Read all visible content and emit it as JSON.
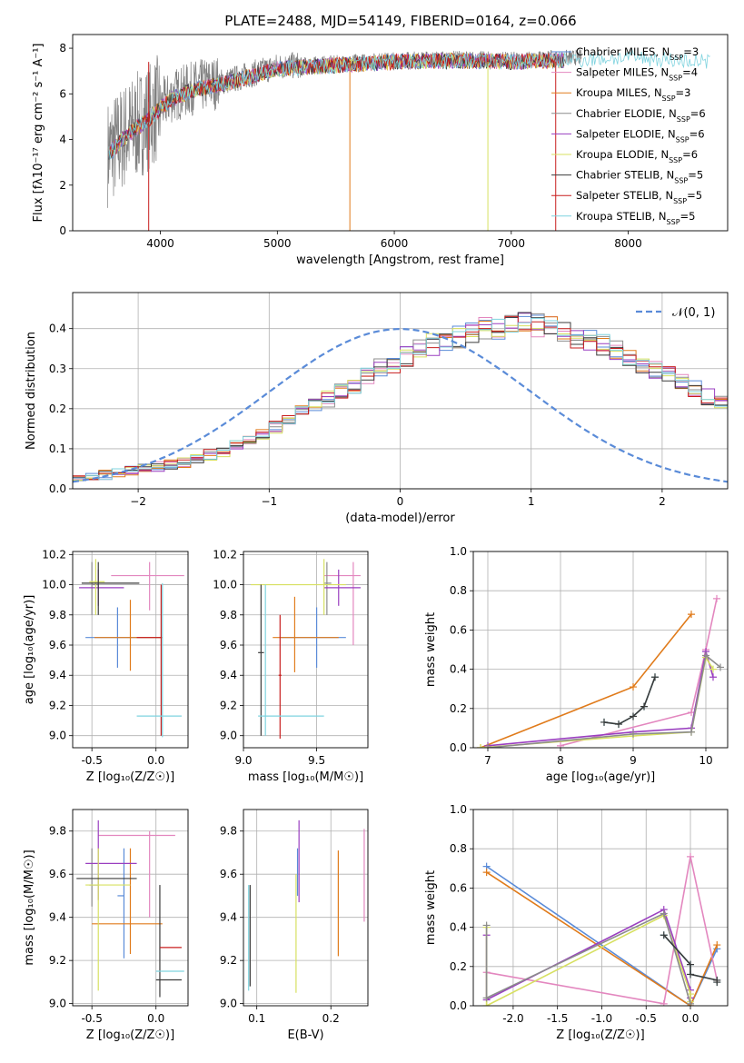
{
  "figure_title": "PLATE=2488, MJD=54149, FIBERID=0164, z=0.066",
  "model_colors": [
    "#5a8bd8",
    "#e387bf",
    "#e07b1b",
    "#8c8c8c",
    "#9a3fc0",
    "#d7e061",
    "#3b3b3b",
    "#c81e1e",
    "#7fd3df"
  ],
  "chart_data": [
    {
      "type": "line",
      "id": "spectrum",
      "xlabel": "wavelength [Angstrom, rest frame]",
      "ylabel": "Flux [fλ10⁻¹⁷ erg cm⁻² s⁻¹ A⁻¹]",
      "xlim": [
        3250,
        8850
      ],
      "ylim": [
        0,
        8.6
      ],
      "xticks": [
        4000,
        5000,
        6000,
        7000,
        8000
      ],
      "yticks": [
        0,
        2,
        4,
        6,
        8
      ],
      "data_series": {
        "name": "data",
        "color": "#808080",
        "x_range": [
          3550,
          7600
        ],
        "continuum": [
          [
            3550,
            3.4
          ],
          [
            3700,
            4.2
          ],
          [
            3900,
            5.0
          ],
          [
            4100,
            5.9
          ],
          [
            4300,
            6.3
          ],
          [
            4600,
            6.6
          ],
          [
            5000,
            7.2
          ],
          [
            5500,
            7.35
          ],
          [
            6000,
            7.5
          ],
          [
            6500,
            7.55
          ],
          [
            7000,
            7.5
          ],
          [
            7600,
            7.6
          ]
        ]
      },
      "legend": [
        "Chabrier MILES, N_SSP=3",
        "Salpeter MILES, N_SSP=4",
        "Kroupa MILES, N_SSP=3",
        "Chabrier ELODIE, N_SSP=6",
        "Salpeter ELODIE, N_SSP=6",
        "Kroupa ELODIE, N_SSP=6",
        "Chabrier STELIB, N_SSP=5",
        "Salpeter STELIB, N_SSP=5",
        "Kroupa STELIB, N_SSP=5"
      ]
    },
    {
      "type": "histogram",
      "id": "residuals",
      "xlabel": "(data-model)/error",
      "ylabel": "Normed distribution",
      "xlim": [
        -2.5,
        2.5
      ],
      "ylim": [
        0,
        0.49
      ],
      "xticks": [
        -2,
        -1,
        0,
        1,
        2
      ],
      "yticks": [
        0.0,
        0.1,
        0.2,
        0.3,
        0.4
      ],
      "bin_width": 0.1,
      "legend": "𝒩(0, 1)",
      "legend_color": "#5a8bd8",
      "bins_base": [
        0.025,
        0.03,
        0.035,
        0.04,
        0.045,
        0.05,
        0.055,
        0.06,
        0.065,
        0.075,
        0.085,
        0.095,
        0.11,
        0.125,
        0.14,
        0.155,
        0.17,
        0.19,
        0.21,
        0.225,
        0.245,
        0.26,
        0.28,
        0.3,
        0.315,
        0.33,
        0.345,
        0.36,
        0.37,
        0.38,
        0.39,
        0.4,
        0.4,
        0.41,
        0.42,
        0.41,
        0.4,
        0.39,
        0.38,
        0.37,
        0.36,
        0.345,
        0.33,
        0.315,
        0.3,
        0.285,
        0.27,
        0.25,
        0.23,
        0.215,
        0.2,
        0.18,
        0.165,
        0.15,
        0.135,
        0.12,
        0.105,
        0.09,
        0.075,
        0.065,
        0.055,
        0.045,
        0.04,
        0.035,
        0.03,
        0.03,
        0.025,
        0.025,
        0.02,
        0.02
      ],
      "bins_start": -2.5
    },
    {
      "type": "errorbar",
      "id": "age-vs-Z",
      "xlabel": "Z [log₁₀(Z/Z☉)]",
      "ylabel": "age  [log₁₀(age/yr)]",
      "xlim": [
        -0.65,
        0.25
      ],
      "ylim": [
        8.92,
        10.22
      ],
      "xticks": [
        -0.5,
        0.0
      ],
      "yticks": [
        9.0,
        9.2,
        9.4,
        9.6,
        9.8,
        10.0,
        10.2
      ],
      "points": [
        {
          "c": 0,
          "x": -0.3,
          "y": 9.65,
          "xe": [
            -0.55,
            0.05
          ],
          "ye": [
            9.45,
            9.85
          ]
        },
        {
          "c": 1,
          "x": -0.05,
          "y": 10.06,
          "xe": [
            -0.35,
            0.22
          ],
          "ye": [
            9.83,
            10.15
          ]
        },
        {
          "c": 2,
          "x": -0.2,
          "y": 9.65,
          "xe": [
            -0.48,
            0.05
          ],
          "ye": [
            9.43,
            9.9
          ]
        },
        {
          "c": 3,
          "x": -0.5,
          "y": 10.0,
          "xe": [
            -0.5,
            -0.45
          ],
          "ye": [
            9.8,
            10.15
          ]
        },
        {
          "c": 4,
          "x": -0.45,
          "y": 9.98,
          "xe": [
            -0.6,
            -0.25
          ],
          "ye": [
            9.86,
            10.1
          ]
        },
        {
          "c": 5,
          "x": -0.47,
          "y": 10.02,
          "xe": [
            -0.52,
            -0.4
          ],
          "ye": [
            9.8,
            10.17
          ]
        },
        {
          "c": 6,
          "x": -0.45,
          "y": 10.01,
          "xe": [
            -0.58,
            -0.13
          ],
          "ye": [
            9.8,
            10.15
          ]
        },
        {
          "c": 7,
          "x": 0.04,
          "y": 9.65,
          "xe": [
            -0.15,
            0.05
          ],
          "ye": [
            9.0,
            10.0
          ]
        },
        {
          "c": 8,
          "x": 0.05,
          "y": 9.13,
          "xe": [
            -0.15,
            0.2
          ],
          "ye": [
            8.99,
            10.01
          ]
        }
      ]
    },
    {
      "type": "errorbar",
      "id": "age-vs-mass",
      "xlabel": "mass [log₁₀(M/M☉)]",
      "ylabel": "",
      "xlim": [
        9.0,
        9.85
      ],
      "ylim": [
        8.92,
        10.22
      ],
      "xticks": [
        9.0,
        9.5
      ],
      "yticks": [
        9.0,
        9.2,
        9.4,
        9.6,
        9.8,
        10.0,
        10.2
      ],
      "points": [
        {
          "c": 0,
          "x": 9.5,
          "y": 9.65,
          "xe": [
            9.25,
            9.7
          ],
          "ye": [
            9.45,
            9.85
          ]
        },
        {
          "c": 1,
          "x": 9.75,
          "y": 10.06,
          "xe": [
            9.55,
            9.8
          ],
          "ye": [
            9.6,
            10.15
          ]
        },
        {
          "c": 2,
          "x": 9.35,
          "y": 9.65,
          "xe": [
            9.2,
            9.65
          ],
          "ye": [
            9.42,
            9.92
          ]
        },
        {
          "c": 3,
          "x": 9.57,
          "y": 10.01,
          "xe": [
            9.55,
            9.6
          ],
          "ye": [
            9.8,
            10.15
          ]
        },
        {
          "c": 4,
          "x": 9.65,
          "y": 9.98,
          "xe": [
            9.55,
            9.8
          ],
          "ye": [
            9.86,
            10.1
          ]
        },
        {
          "c": 5,
          "x": 9.55,
          "y": 10.0,
          "xe": [
            9.05,
            9.7
          ],
          "ye": [
            9.8,
            10.17
          ]
        },
        {
          "c": 6,
          "x": 9.12,
          "y": 9.55,
          "xe": [
            9.1,
            9.14
          ],
          "ye": [
            9.0,
            10.0
          ]
        },
        {
          "c": 7,
          "x": 9.25,
          "y": 9.4,
          "xe": [
            9.24,
            9.26
          ],
          "ye": [
            8.98,
            9.8
          ]
        },
        {
          "c": 8,
          "x": 9.15,
          "y": 9.13,
          "xe": [
            9.1,
            9.55
          ],
          "ye": [
            9.0,
            10.0
          ]
        }
      ]
    },
    {
      "type": "line",
      "id": "weight-vs-age",
      "xlabel": "age  [log₁₀(age/yr)]",
      "ylabel": "mass weight",
      "xlim": [
        6.8,
        10.3
      ],
      "ylim": [
        0,
        1.0
      ],
      "xticks": [
        7,
        8,
        9,
        10
      ],
      "yticks": [
        0.0,
        0.2,
        0.4,
        0.6,
        0.8,
        1.0
      ],
      "series": [
        {
          "c": 0,
          "x": [
            6.9,
            9.0,
            9.8
          ],
          "y": [
            0.0,
            0.29,
            0.71
          ]
        },
        {
          "c": 2,
          "x": 6.9,
          "y": 0.0,
          "xs": [
            6.9,
            9.0,
            9.8
          ],
          "ys": [
            0.0,
            0.31,
            0.68
          ]
        },
        {
          "c": 1,
          "xs": [
            8.0,
            9.8,
            10.0,
            10.15
          ],
          "ys": [
            0.01,
            0.18,
            0.5,
            0.76
          ]
        },
        {
          "c": 4,
          "xs": [
            7.0,
            9.0,
            9.8,
            10.0,
            10.1
          ],
          "ys": [
            0.01,
            0.08,
            0.1,
            0.49,
            0.36
          ]
        },
        {
          "c": 5,
          "xs": [
            6.9,
            9.0,
            9.8,
            10.0,
            10.1
          ],
          "ys": [
            0.0,
            0.06,
            0.08,
            0.46,
            0.4
          ]
        },
        {
          "c": 3,
          "xs": [
            7.0,
            9.0,
            9.8,
            10.0,
            10.2
          ],
          "ys": [
            0.0,
            0.07,
            0.08,
            0.47,
            0.41
          ]
        },
        {
          "c": 8,
          "xs": [
            8.6,
            8.8,
            9.0,
            9.15,
            9.3
          ],
          "ys": [
            0.13,
            0.12,
            0.16,
            0.21,
            0.36
          ]
        },
        {
          "c": 6,
          "xs": [
            8.6,
            8.8,
            9.0,
            9.15,
            9.3
          ],
          "ys": [
            0.13,
            0.12,
            0.16,
            0.21,
            0.36
          ]
        }
      ]
    },
    {
      "type": "errorbar",
      "id": "mass-vs-Z",
      "xlabel": "Z [log₁₀(Z/Z☉)]",
      "ylabel": "mass [log₁₀(M/M☉)]",
      "xlim": [
        -0.65,
        0.25
      ],
      "ylim": [
        8.99,
        9.9
      ],
      "xticks": [
        -0.5,
        0.0
      ],
      "yticks": [
        9.0,
        9.2,
        9.4,
        9.6,
        9.8
      ],
      "points": [
        {
          "c": 0,
          "x": -0.25,
          "y": 9.5,
          "xe": [
            -0.3,
            -0.25
          ],
          "ye": [
            9.21,
            9.72
          ]
        },
        {
          "c": 1,
          "x": -0.05,
          "y": 9.78,
          "xe": [
            -0.45,
            0.15
          ],
          "ye": [
            9.4,
            9.8
          ]
        },
        {
          "c": 2,
          "x": -0.2,
          "y": 9.37,
          "xe": [
            -0.5,
            0.05
          ],
          "ye": [
            9.23,
            9.72
          ]
        },
        {
          "c": 3,
          "x": -0.5,
          "y": 9.55,
          "xe": [
            -0.52,
            -0.45
          ],
          "ye": [
            9.45,
            9.72
          ]
        },
        {
          "c": 4,
          "x": -0.45,
          "y": 9.65,
          "xe": [
            -0.55,
            -0.15
          ],
          "ye": [
            9.48,
            9.85
          ]
        },
        {
          "c": 5,
          "x": -0.45,
          "y": 9.55,
          "xe": [
            -0.55,
            -0.2
          ],
          "ye": [
            9.06,
            9.72
          ]
        },
        {
          "c": 6,
          "x": 0.03,
          "y": 9.11,
          "xe": [
            0.0,
            0.2
          ],
          "ye": [
            9.03,
            9.55
          ]
        },
        {
          "c": 7,
          "x": 0.1,
          "y": 9.26,
          "xe": [
            0.03,
            0.2
          ],
          "ye": [
            9.26,
            9.26
          ]
        },
        {
          "c": 8,
          "x": 0.1,
          "y": 9.15,
          "xe": [
            0.0,
            0.22
          ],
          "ye": [
            9.15,
            9.15
          ]
        },
        {
          "c": 6,
          "x": -0.5,
          "y": 9.58,
          "xe": [
            -0.62,
            -0.15
          ],
          "ye": [
            9.58,
            9.58
          ]
        }
      ]
    },
    {
      "type": "errorbar",
      "id": "mass-vs-ebv",
      "xlabel": "E(B-V)",
      "ylabel": "",
      "xlim": [
        0.082,
        0.25
      ],
      "ylim": [
        8.99,
        9.9
      ],
      "xticks": [
        0.1,
        0.2
      ],
      "yticks": [
        9.0,
        9.2,
        9.4,
        9.6,
        9.8
      ],
      "points": [
        {
          "c": 8,
          "x": 0.089,
          "y": 9.3,
          "ye": [
            9.06,
            9.55
          ]
        },
        {
          "c": 6,
          "x": 0.091,
          "y": 9.3,
          "ye": [
            9.08,
            9.55
          ]
        },
        {
          "c": 5,
          "x": 0.153,
          "y": 9.3,
          "ye": [
            9.05,
            9.6
          ]
        },
        {
          "c": 4,
          "x": 0.157,
          "y": 9.65,
          "ye": [
            9.47,
            9.85
          ]
        },
        {
          "c": 0,
          "x": 0.155,
          "y": 9.6,
          "ye": [
            9.5,
            9.72
          ]
        },
        {
          "c": 2,
          "x": 0.21,
          "y": 9.5,
          "ye": [
            9.22,
            9.71
          ]
        },
        {
          "c": 1,
          "x": 0.245,
          "y": 9.6,
          "ye": [
            9.38,
            9.81
          ]
        }
      ]
    },
    {
      "type": "line",
      "id": "weight-vs-Z",
      "xlabel": "Z [log₁₀(Z/Z☉)]",
      "ylabel": "mass weight",
      "xlim": [
        -2.45,
        0.42
      ],
      "ylim": [
        0,
        1.0
      ],
      "xticks": [
        -2.0,
        -1.5,
        -1.0,
        -0.5,
        0.0
      ],
      "yticks": [
        0.0,
        0.2,
        0.4,
        0.6,
        0.8,
        1.0
      ],
      "series": [
        {
          "c": 0,
          "xs": [
            -2.3,
            0.0,
            0.3
          ],
          "ys": [
            0.71,
            0.0,
            0.29
          ]
        },
        {
          "c": 2,
          "xs": [
            -2.3,
            0.0,
            0.3
          ],
          "ys": [
            0.68,
            0.0,
            0.31
          ]
        },
        {
          "c": 1,
          "xs": [
            -2.3,
            -0.3,
            0.0,
            0.3
          ],
          "ys": [
            0.17,
            0.01,
            0.76,
            0.13
          ]
        },
        {
          "c": 4,
          "xs": [
            -2.3,
            -2.3,
            -0.3,
            0.0,
            0.0
          ],
          "ys": [
            0.36,
            0.03,
            0.49,
            0.08,
            0.04
          ]
        },
        {
          "c": 5,
          "xs": [
            -2.3,
            -2.3,
            -0.3,
            0.0,
            0.0
          ],
          "ys": [
            0.4,
            0.0,
            0.46,
            0.06,
            0.02
          ]
        },
        {
          "c": 3,
          "xs": [
            -2.3,
            -2.3,
            -0.3,
            0.0
          ],
          "ys": [
            0.41,
            0.04,
            0.47,
            0.01
          ]
        },
        {
          "c": 8,
          "xs": [
            -0.3,
            0.0,
            0.0,
            0.3,
            0.3
          ],
          "ys": [
            0.36,
            0.21,
            0.16,
            0.13,
            0.12
          ]
        },
        {
          "c": 6,
          "xs": [
            -0.3,
            0.0,
            0.0,
            0.3,
            0.3
          ],
          "ys": [
            0.36,
            0.21,
            0.16,
            0.13,
            0.12
          ]
        }
      ]
    }
  ]
}
